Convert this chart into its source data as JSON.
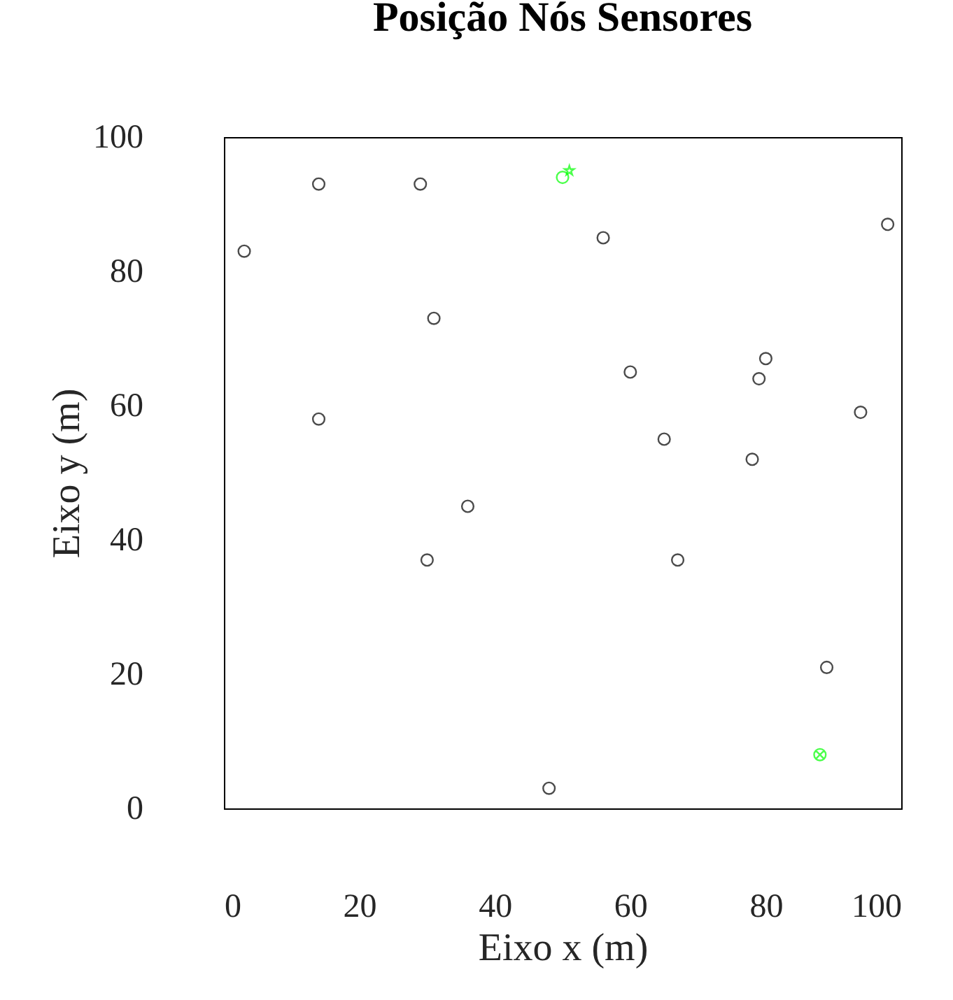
{
  "chart_data": {
    "type": "scatter",
    "title": "Posição Nós Sensores",
    "xlabel": "Eixo x (m)",
    "ylabel": "Eixo y (m)",
    "xlim": [
      0,
      100
    ],
    "ylim": [
      0,
      100
    ],
    "xticks": [
      0,
      20,
      40,
      60,
      80,
      100
    ],
    "yticks": [
      0,
      20,
      40,
      60,
      80,
      100
    ],
    "grid": false,
    "series": [
      {
        "color": "#000000",
        "marker": "circle",
        "x": [
          3,
          14,
          29,
          56,
          98,
          31,
          14,
          60,
          80,
          79,
          94,
          65,
          78,
          36,
          30,
          67,
          89,
          48
        ],
        "values": [
          83,
          93,
          93,
          85,
          87,
          73,
          58,
          65,
          67,
          64,
          59,
          55,
          52,
          45,
          37,
          37,
          21,
          3
        ]
      },
      {
        "color": "#00ff00",
        "marker": "circle",
        "x": [
          50
        ],
        "values": [
          94
        ]
      },
      {
        "color": "#00ff00",
        "marker": "star",
        "x": [
          51
        ],
        "values": [
          95
        ]
      },
      {
        "color": "#00ff00",
        "marker": "cross",
        "x": [
          88
        ],
        "values": [
          8
        ]
      }
    ]
  }
}
